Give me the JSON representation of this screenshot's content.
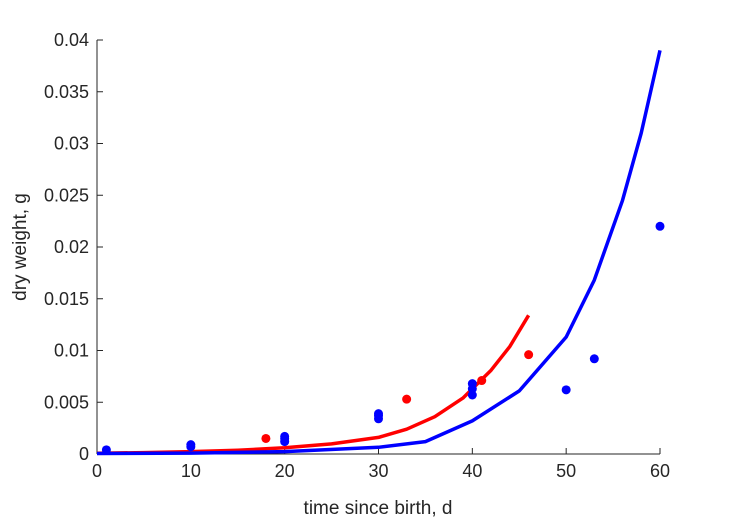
{
  "chart_data": {
    "type": "scatter",
    "title": "",
    "xlabel": "time since birth, d",
    "ylabel": "dry weight, g",
    "xlim": [
      0,
      60
    ],
    "ylim": [
      0,
      0.04
    ],
    "xticks": [
      0,
      10,
      20,
      30,
      40,
      50,
      60
    ],
    "xtick_labels": [
      "0",
      "10",
      "20",
      "30",
      "40",
      "50",
      "60"
    ],
    "yticks": [
      0,
      0.005,
      0.01,
      0.015,
      0.02,
      0.025,
      0.03,
      0.035,
      0.04
    ],
    "ytick_labels": [
      "0",
      "0.005",
      "0.01",
      "0.015",
      "0.02",
      "0.025",
      "0.03",
      "0.035",
      "0.04"
    ],
    "grid": false,
    "series": [
      {
        "kind": "points",
        "color": "#0000ff",
        "x": [
          1,
          10,
          10,
          20,
          20,
          20,
          30,
          30,
          30,
          40,
          40,
          40,
          50,
          53,
          60
        ],
        "y": [
          0.0004,
          0.0007,
          0.0009,
          0.0012,
          0.0015,
          0.0017,
          0.0034,
          0.0037,
          0.0039,
          0.0057,
          0.0063,
          0.0068,
          0.0062,
          0.0092,
          0.022
        ]
      },
      {
        "kind": "points",
        "color": "#ff0000",
        "x": [
          18,
          33,
          41,
          46
        ],
        "y": [
          0.0015,
          0.0053,
          0.0071,
          0.0096
        ]
      },
      {
        "kind": "line",
        "color": "#ff0000",
        "x": [
          0,
          5,
          10,
          15,
          20,
          25,
          30,
          33,
          36,
          39,
          42,
          44,
          46
        ],
        "y": [
          8e-05,
          0.00014,
          0.00023,
          0.00037,
          0.0006,
          0.00098,
          0.0016,
          0.0024,
          0.0036,
          0.0054,
          0.0081,
          0.0104,
          0.0134
        ]
      },
      {
        "kind": "line",
        "color": "#0000ff",
        "x": [
          0,
          10,
          20,
          30,
          35,
          40,
          45,
          50,
          53,
          56,
          58,
          60
        ],
        "y": [
          5e-05,
          9e-05,
          0.00023,
          0.00065,
          0.0012,
          0.0032,
          0.0061,
          0.0113,
          0.0168,
          0.0245,
          0.031,
          0.039
        ]
      }
    ]
  }
}
